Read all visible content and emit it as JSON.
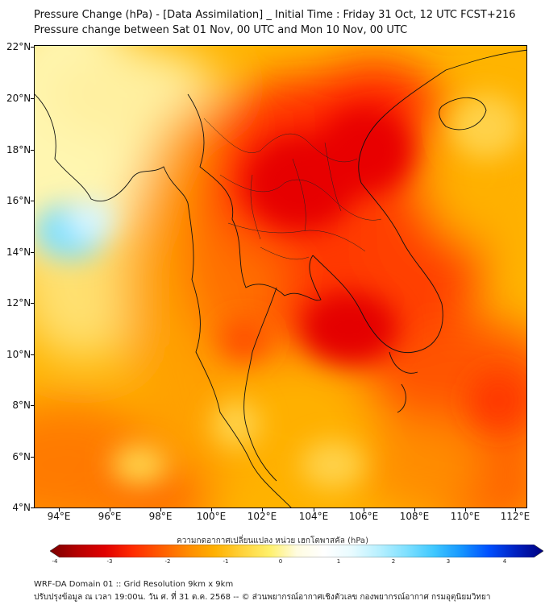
{
  "title_line1": "Pressure Change (hPa) - [Data Assimilation] _ Initial Time : Friday 31 Oct, 12 UTC FCST+216",
  "title_line2": "Pressure change between Sat 01 Nov, 00 UTC and Mon 10 Nov, 00 UTC",
  "lat_labels": [
    "22°N",
    "20°N",
    "18°N",
    "16°N",
    "14°N",
    "12°N",
    "10°N",
    "8°N",
    "6°N",
    "4°N"
  ],
  "lon_labels": [
    "94°E",
    "96°E",
    "98°E",
    "100°E",
    "102°E",
    "104°E",
    "106°E",
    "108°E",
    "110°E",
    "112°E"
  ],
  "colorbar": {
    "label": "ความกดอากาศเปลี่ยนแปลง หน่วย เฮกโตพาสคัล (hPa)",
    "min": -4,
    "max": 4,
    "ticks": [
      "-4",
      "-3",
      "-2",
      "-1",
      "0",
      "1",
      "2",
      "3",
      "4"
    ],
    "colors": [
      "#7a0000",
      "#b50000",
      "#e00000",
      "#ff2a00",
      "#ff5a00",
      "#ff8a00",
      "#ffb000",
      "#ffd23a",
      "#fff06a",
      "#fffce0",
      "#ffffff",
      "#e8fbff",
      "#b8f0ff",
      "#7fe0ff",
      "#3fc8ff",
      "#1596ff",
      "#0050ff",
      "#0020c0",
      "#000080"
    ]
  },
  "footer_line1": "WRF-DA Domain 01 :: Grid Resolution 9km x 9km",
  "footer_line2": "ปรับปรุงข้อมูล ณ เวลา 19:00น. วัน ศ. ที่ 31 ต.ค. 2568 -- © ส่วนพยากรณ์อากาศเชิงตัวเลข กองพยากรณ์อากาศ กรมอุตุนิยมวิทยา"
}
